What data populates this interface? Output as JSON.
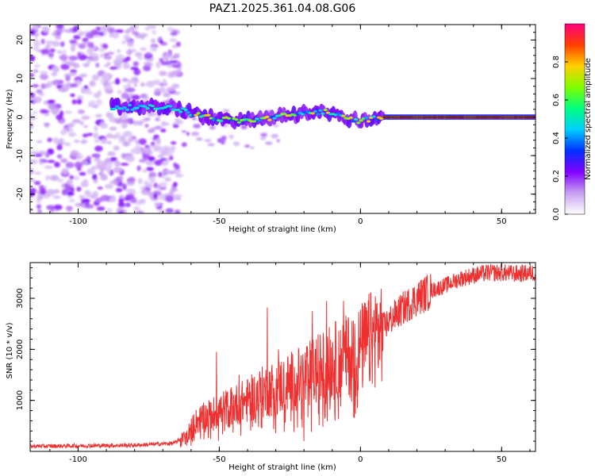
{
  "title": "PAZ1.2025.361.04.08.G06",
  "chart_data": [
    {
      "type": "heatmap",
      "name": "spectrogram",
      "xlabel": "Height of straight line (km)",
      "ylabel": "Frequency (Hz)",
      "xlim": [
        -117,
        62
      ],
      "ylim": [
        -25,
        24
      ],
      "xticks": [
        -100,
        -50,
        0,
        50
      ],
      "xtick_labels": [
        "-100",
        "-50",
        "0",
        "50"
      ],
      "yticks": [
        -20,
        -10,
        0,
        10,
        20
      ],
      "ytick_labels": [
        "-20",
        "-10",
        "0",
        "10",
        "20"
      ],
      "colorbar": {
        "label": "Normalized spectral amplitude",
        "range": [
          0,
          1
        ],
        "ticks": [
          0.0,
          0.2,
          0.4,
          0.6,
          0.8
        ],
        "tick_labels": [
          "0.0",
          "0.2",
          "0.4",
          "0.6",
          "0.8"
        ],
        "colormap": [
          "#ffffff",
          "#c8a0f0",
          "#8000ff",
          "#0030ff",
          "#00d0ff",
          "#00ff80",
          "#80ff00",
          "#ffd000",
          "#ff4000",
          "#ff0080"
        ]
      },
      "noise_region_x": [
        -117,
        -64
      ],
      "ridge": {
        "description": "main spectral line",
        "x": [
          -88,
          -80,
          -72,
          -66,
          -60,
          -50,
          -40,
          -30,
          -20,
          -12,
          -5,
          0,
          8,
          20,
          30,
          40,
          50,
          62
        ],
        "y": [
          2.5,
          2.5,
          2.5,
          2.5,
          1.0,
          -0.5,
          -1.0,
          0.0,
          1.0,
          1.5,
          -0.5,
          -1.0,
          0.0,
          0.0,
          0.0,
          0.0,
          0.0,
          0.0
        ]
      },
      "line_start_x": 8,
      "line_y": 0.0,
      "line_color": "#000000"
    },
    {
      "type": "line",
      "name": "snr",
      "xlabel": "Height of straight line (km)",
      "ylabel": "SNR (10 * v/v)",
      "xlim": [
        -117,
        62
      ],
      "ylim": [
        0,
        3700
      ],
      "xticks": [
        -100,
        -50,
        0,
        50
      ],
      "xtick_labels": [
        "-100",
        "-50",
        "0",
        "50"
      ],
      "yticks": [
        1000,
        2000,
        3000
      ],
      "ytick_labels": [
        "1000",
        "2000",
        "3000"
      ],
      "line_color": "#ee3030",
      "envelope": {
        "x": [
          -117,
          -100,
          -80,
          -66,
          -62,
          -58,
          -50,
          -45,
          -40,
          -35,
          -30,
          -25,
          -20,
          -15,
          -10,
          -5,
          0,
          5,
          10,
          15,
          20,
          25,
          30,
          35,
          40,
          45,
          50,
          55,
          62
        ],
        "y": [
          100,
          110,
          120,
          160,
          300,
          600,
          800,
          900,
          1000,
          1150,
          1250,
          1350,
          1450,
          1600,
          1750,
          1850,
          2000,
          2250,
          2550,
          2800,
          3000,
          3150,
          3250,
          3380,
          3450,
          3500,
          3500,
          3480,
          3500
        ]
      },
      "spikes": [
        {
          "x": -51,
          "y": 1950
        },
        {
          "x": -43,
          "y": 1500
        },
        {
          "x": -33,
          "y": 2820
        },
        {
          "x": -29,
          "y": 2000
        },
        {
          "x": -20,
          "y": 200
        },
        {
          "x": -17,
          "y": 2750
        },
        {
          "x": -12,
          "y": 2950
        },
        {
          "x": -6,
          "y": 2950
        },
        {
          "x": -2,
          "y": 2500
        }
      ]
    }
  ]
}
